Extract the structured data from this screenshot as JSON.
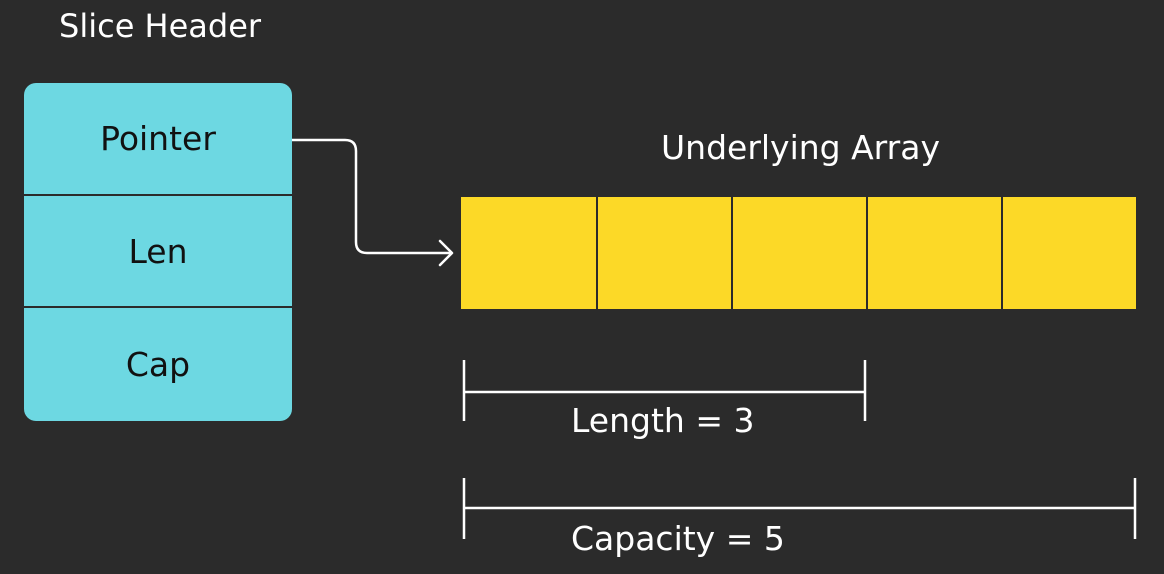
{
  "slice_header": {
    "title": "Slice Header",
    "fields": [
      "Pointer",
      "Len",
      "Cap"
    ]
  },
  "underlying_array": {
    "title": "Underlying Array",
    "cell_count": 5
  },
  "length_label": "Length = 3",
  "capacity_label": "Capacity = 5",
  "colors": {
    "background": "#2b2b2b",
    "header_fill": "#6dd8e2",
    "array_fill": "#fcd927",
    "line": "#ffffff"
  }
}
